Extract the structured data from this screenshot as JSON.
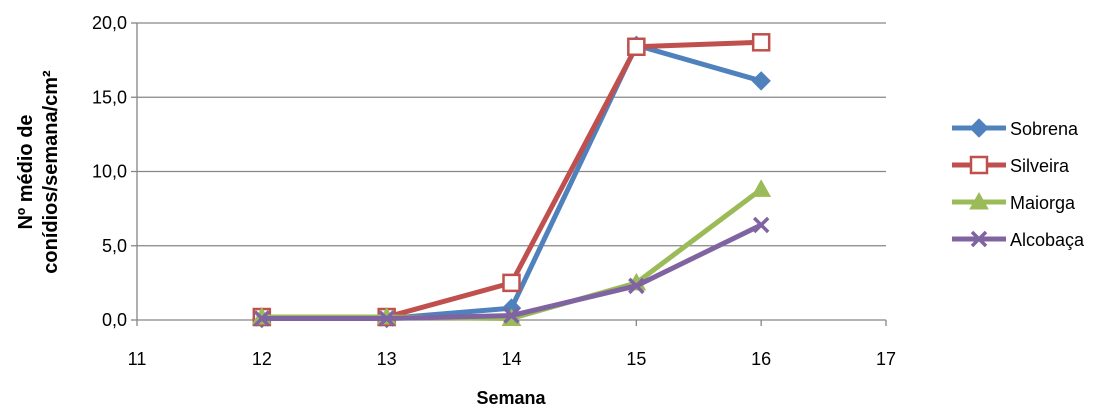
{
  "chart_data": {
    "type": "line",
    "xlabel": "Semana",
    "ylabel_lines": [
      "Nº médio de",
      "conídios/semana/cm²"
    ],
    "xlim": [
      11,
      17
    ],
    "ylim": [
      0,
      20
    ],
    "x_ticks": [
      "11",
      "12",
      "13",
      "14",
      "15",
      "16",
      "17"
    ],
    "y_ticks": [
      "0,0",
      "5,0",
      "10,0",
      "15,0",
      "20,0"
    ],
    "grid": "horizontal",
    "legend_position": "right",
    "series": [
      {
        "name": "Sobrena",
        "color": "#4f81bd",
        "marker": "diamond",
        "x": [
          12,
          13,
          14,
          15,
          16
        ],
        "y": [
          0.1,
          0.1,
          0.8,
          18.5,
          16.1
        ]
      },
      {
        "name": "Silveira",
        "color": "#c0504d",
        "marker": "open-square",
        "x": [
          12,
          13,
          14,
          15,
          16
        ],
        "y": [
          0.2,
          0.2,
          2.5,
          18.4,
          18.7
        ]
      },
      {
        "name": "Maiorga",
        "color": "#9bbb59",
        "marker": "triangle",
        "x": [
          12,
          13,
          14,
          15,
          16
        ],
        "y": [
          0.2,
          0.2,
          0.1,
          2.5,
          8.8
        ]
      },
      {
        "name": "Alcobaça",
        "color": "#8064a2",
        "marker": "x",
        "x": [
          12,
          13,
          14,
          15,
          16
        ],
        "y": [
          0.1,
          0.1,
          0.3,
          2.3,
          6.4
        ]
      }
    ]
  }
}
